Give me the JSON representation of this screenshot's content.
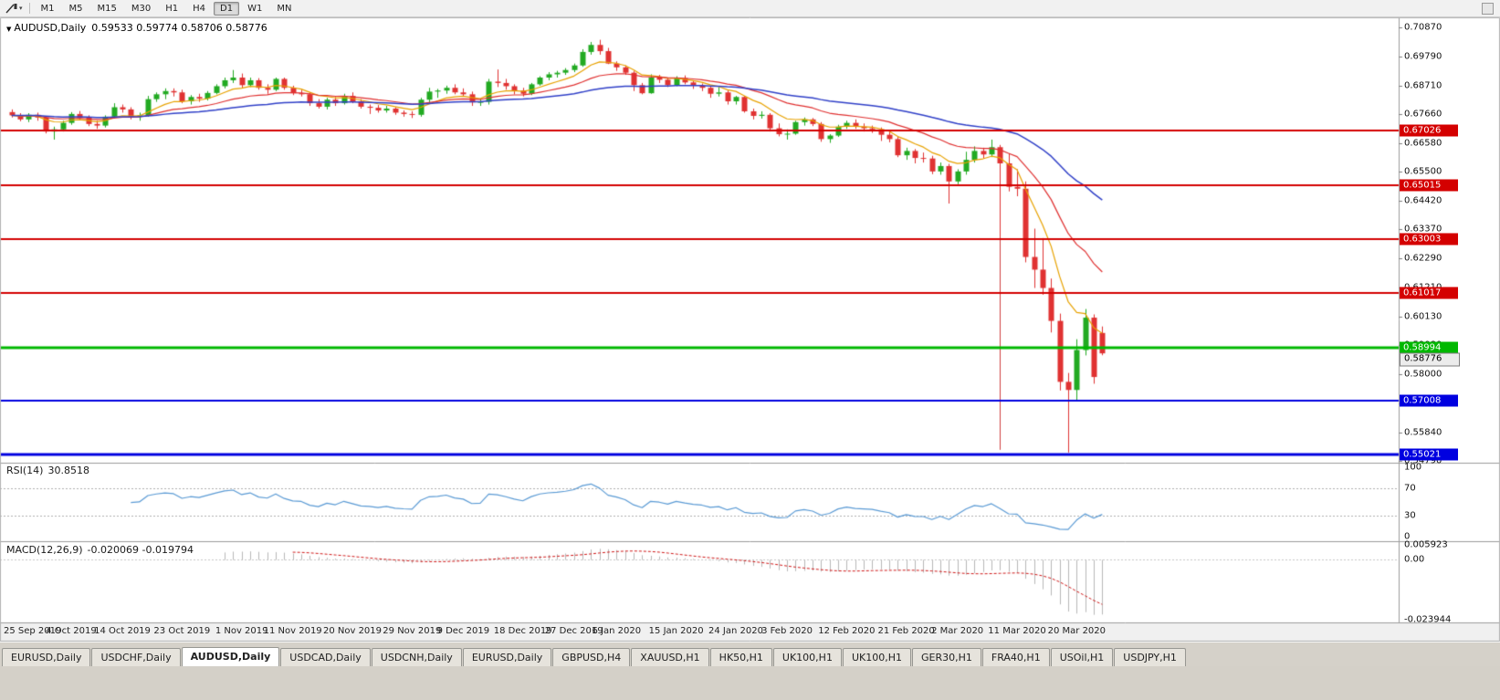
{
  "toolbar": {
    "timeframes": [
      "M1",
      "M5",
      "M15",
      "M30",
      "H1",
      "H4",
      "D1",
      "W1",
      "MN"
    ],
    "active_timeframe": "D1"
  },
  "chart": {
    "symbol_title": "AUDUSD,Daily",
    "ohlc_text": "0.59533 0.59774 0.58706 0.58776",
    "open": "0.59533",
    "high": "0.59774",
    "low": "0.58706",
    "close": "0.58776"
  },
  "rsi": {
    "name": "RSI(14)",
    "value": "30.8518",
    "axis_labels": [
      "100",
      "70",
      "30",
      "0"
    ]
  },
  "macd": {
    "name": "MACD(12,26,9)",
    "value_text": "-0.020069 -0.019794",
    "axis_labels": [
      "0.005923",
      "0.00",
      "-0.023944"
    ]
  },
  "tabs": {
    "items": [
      "EURUSD,Daily",
      "USDCHF,Daily",
      "AUDUSD,Daily",
      "USDCAD,Daily",
      "USDCNH,Daily",
      "EURUSD,Daily",
      "GBPUSD,H4",
      "XAUUSD,H1",
      "HK50,H1",
      "UK100,H1",
      "UK100,H1",
      "GER30,H1",
      "FRA40,H1",
      "USOil,H1",
      "USDJPY,H1"
    ],
    "active_index": 2
  },
  "chart_data": {
    "type": "candlestick",
    "symbol": "AUDUSD",
    "timeframe": "Daily",
    "title": "AUDUSD,Daily",
    "y_range": [
      0.5479,
      0.7103
    ],
    "price_axis_ticks": [
      "0.70870",
      "0.69790",
      "0.68710",
      "0.67660",
      "0.66580",
      "0.65500",
      "0.64420",
      "0.63370",
      "0.62290",
      "0.61210",
      "0.60130",
      "0.59080",
      "0.58000",
      "0.56920",
      "0.55840",
      "0.54790"
    ],
    "x_labels": [
      {
        "i": 0,
        "t": "25 Sep 2019"
      },
      {
        "i": 7,
        "t": "4 Oct 2019"
      },
      {
        "i": 13,
        "t": "14 Oct 2019"
      },
      {
        "i": 20,
        "t": "23 Oct 2019"
      },
      {
        "i": 27,
        "t": "1 Nov 2019"
      },
      {
        "i": 33,
        "t": "11 Nov 2019"
      },
      {
        "i": 40,
        "t": "20 Nov 2019"
      },
      {
        "i": 47,
        "t": "29 Nov 2019"
      },
      {
        "i": 53,
        "t": "9 Dec 2019"
      },
      {
        "i": 60,
        "t": "18 Dec 2019"
      },
      {
        "i": 66,
        "t": "27 Dec 2019"
      },
      {
        "i": 71,
        "t": "6 Jan 2020"
      },
      {
        "i": 78,
        "t": "15 Jan 2020"
      },
      {
        "i": 85,
        "t": "24 Jan 2020"
      },
      {
        "i": 91,
        "t": "3 Feb 2020"
      },
      {
        "i": 98,
        "t": "12 Feb 2020"
      },
      {
        "i": 105,
        "t": "21 Feb 2020"
      },
      {
        "i": 111,
        "t": "2 Mar 2020"
      },
      {
        "i": 118,
        "t": "11 Mar 2020"
      },
      {
        "i": 125,
        "t": "20 Mar 2020"
      }
    ],
    "candles": [
      [
        0.6772,
        0.6782,
        0.6752,
        0.676
      ],
      [
        0.676,
        0.6768,
        0.6738,
        0.6745
      ],
      [
        0.6745,
        0.6768,
        0.6735,
        0.6762
      ],
      [
        0.6762,
        0.677,
        0.674,
        0.6752
      ],
      [
        0.6752,
        0.6758,
        0.6693,
        0.67
      ],
      [
        0.67,
        0.6718,
        0.667,
        0.6708
      ],
      [
        0.6708,
        0.674,
        0.67,
        0.6732
      ],
      [
        0.6732,
        0.6772,
        0.6725,
        0.6765
      ],
      [
        0.6765,
        0.6776,
        0.6745,
        0.6752
      ],
      [
        0.6752,
        0.676,
        0.672,
        0.6728
      ],
      [
        0.6728,
        0.674,
        0.671,
        0.6722
      ],
      [
        0.6722,
        0.676,
        0.6715,
        0.6755
      ],
      [
        0.6755,
        0.6805,
        0.675,
        0.679
      ],
      [
        0.679,
        0.68,
        0.677,
        0.6782
      ],
      [
        0.6782,
        0.679,
        0.6745,
        0.6755
      ],
      [
        0.6755,
        0.677,
        0.674,
        0.676
      ],
      [
        0.676,
        0.6832,
        0.6755,
        0.682
      ],
      [
        0.682,
        0.6845,
        0.681,
        0.6838
      ],
      [
        0.6838,
        0.686,
        0.682,
        0.685
      ],
      [
        0.685,
        0.686,
        0.683,
        0.6845
      ],
      [
        0.6845,
        0.6855,
        0.6805,
        0.6812
      ],
      [
        0.6812,
        0.6835,
        0.68,
        0.6828
      ],
      [
        0.6828,
        0.684,
        0.681,
        0.6822
      ],
      [
        0.6822,
        0.685,
        0.6815,
        0.6843
      ],
      [
        0.6843,
        0.6875,
        0.6838,
        0.6868
      ],
      [
        0.6868,
        0.69,
        0.686,
        0.689
      ],
      [
        0.689,
        0.6928,
        0.688,
        0.69
      ],
      [
        0.69,
        0.6915,
        0.6862,
        0.6872
      ],
      [
        0.6872,
        0.69,
        0.6865,
        0.689
      ],
      [
        0.689,
        0.6898,
        0.6855,
        0.6862
      ],
      [
        0.6862,
        0.6875,
        0.684,
        0.6855
      ],
      [
        0.6855,
        0.69,
        0.685,
        0.6895
      ],
      [
        0.6895,
        0.69,
        0.6855,
        0.6862
      ],
      [
        0.6862,
        0.687,
        0.6835,
        0.6842
      ],
      [
        0.6842,
        0.6855,
        0.683,
        0.6838
      ],
      [
        0.6838,
        0.6845,
        0.6795,
        0.6805
      ],
      [
        0.6805,
        0.682,
        0.6785,
        0.6792
      ],
      [
        0.6792,
        0.6825,
        0.6782,
        0.6818
      ],
      [
        0.6818,
        0.6828,
        0.6795,
        0.6805
      ],
      [
        0.6805,
        0.684,
        0.68,
        0.6832
      ],
      [
        0.6832,
        0.6845,
        0.6805,
        0.6812
      ],
      [
        0.6812,
        0.682,
        0.6785,
        0.6792
      ],
      [
        0.6792,
        0.68,
        0.6765,
        0.6788
      ],
      [
        0.6788,
        0.6798,
        0.677,
        0.6778
      ],
      [
        0.6778,
        0.6795,
        0.677,
        0.6785
      ],
      [
        0.6785,
        0.679,
        0.6762,
        0.677
      ],
      [
        0.677,
        0.6778,
        0.6755,
        0.6765
      ],
      [
        0.6765,
        0.6775,
        0.675,
        0.6762
      ],
      [
        0.6762,
        0.6825,
        0.6755,
        0.6818
      ],
      [
        0.6818,
        0.6862,
        0.6805,
        0.6848
      ],
      [
        0.6848,
        0.6858,
        0.6825,
        0.6852
      ],
      [
        0.6852,
        0.687,
        0.684,
        0.6862
      ],
      [
        0.6862,
        0.6875,
        0.6838,
        0.6845
      ],
      [
        0.6845,
        0.686,
        0.683,
        0.6838
      ],
      [
        0.6838,
        0.6848,
        0.6795,
        0.6808
      ],
      [
        0.6808,
        0.682,
        0.6795,
        0.681
      ],
      [
        0.681,
        0.6895,
        0.68,
        0.6885
      ],
      [
        0.6885,
        0.693,
        0.6865,
        0.688
      ],
      [
        0.688,
        0.6895,
        0.6855,
        0.6868
      ],
      [
        0.6868,
        0.6875,
        0.6838,
        0.6852
      ],
      [
        0.6852,
        0.6862,
        0.683,
        0.684
      ],
      [
        0.684,
        0.688,
        0.6835,
        0.6875
      ],
      [
        0.6875,
        0.6905,
        0.687,
        0.69
      ],
      [
        0.69,
        0.692,
        0.689,
        0.6912
      ],
      [
        0.6912,
        0.6925,
        0.69,
        0.6918
      ],
      [
        0.6918,
        0.6935,
        0.691,
        0.6928
      ],
      [
        0.6928,
        0.6952,
        0.692,
        0.6945
      ],
      [
        0.6945,
        0.7005,
        0.694,
        0.6995
      ],
      [
        0.6995,
        0.7032,
        0.6985,
        0.7021
      ],
      [
        0.7021,
        0.704,
        0.6985,
        0.6998
      ],
      [
        0.6998,
        0.701,
        0.695,
        0.6952
      ],
      [
        0.6952,
        0.696,
        0.6925,
        0.6938
      ],
      [
        0.6938,
        0.6945,
        0.691,
        0.6918
      ],
      [
        0.6918,
        0.6925,
        0.685,
        0.6872
      ],
      [
        0.6872,
        0.688,
        0.6838,
        0.6842
      ],
      [
        0.6842,
        0.6912,
        0.684,
        0.69
      ],
      [
        0.69,
        0.691,
        0.688,
        0.6892
      ],
      [
        0.6892,
        0.69,
        0.6865,
        0.6872
      ],
      [
        0.6872,
        0.6905,
        0.6868,
        0.6898
      ],
      [
        0.6898,
        0.6908,
        0.6875,
        0.6882
      ],
      [
        0.6882,
        0.689,
        0.6858,
        0.687
      ],
      [
        0.687,
        0.6878,
        0.685,
        0.6862
      ],
      [
        0.6862,
        0.687,
        0.6825,
        0.684
      ],
      [
        0.684,
        0.6865,
        0.683,
        0.6845
      ],
      [
        0.6845,
        0.6852,
        0.68,
        0.6812
      ],
      [
        0.6812,
        0.6832,
        0.68,
        0.6828
      ],
      [
        0.6828,
        0.6832,
        0.677,
        0.6775
      ],
      [
        0.6775,
        0.6785,
        0.6745,
        0.6758
      ],
      [
        0.6758,
        0.6775,
        0.6748,
        0.6762
      ],
      [
        0.6762,
        0.6768,
        0.67,
        0.6712
      ],
      [
        0.6712,
        0.673,
        0.6682,
        0.669
      ],
      [
        0.669,
        0.6708,
        0.667,
        0.6692
      ],
      [
        0.6692,
        0.674,
        0.6688,
        0.6735
      ],
      [
        0.6735,
        0.6752,
        0.6722,
        0.6745
      ],
      [
        0.6745,
        0.675,
        0.672,
        0.6728
      ],
      [
        0.6728,
        0.6735,
        0.6662,
        0.6672
      ],
      [
        0.6672,
        0.669,
        0.6658,
        0.6685
      ],
      [
        0.6685,
        0.6725,
        0.668,
        0.6718
      ],
      [
        0.6718,
        0.674,
        0.671,
        0.6732
      ],
      [
        0.6732,
        0.6745,
        0.671,
        0.6718
      ],
      [
        0.6718,
        0.673,
        0.67,
        0.6712
      ],
      [
        0.6712,
        0.6722,
        0.6695,
        0.6708
      ],
      [
        0.6708,
        0.6715,
        0.6665,
        0.6688
      ],
      [
        0.6688,
        0.67,
        0.666,
        0.6672
      ],
      [
        0.6672,
        0.668,
        0.6605,
        0.6612
      ],
      [
        0.6612,
        0.664,
        0.6595,
        0.6628
      ],
      [
        0.6628,
        0.6635,
        0.6582,
        0.6602
      ],
      [
        0.6602,
        0.6622,
        0.6585,
        0.66
      ],
      [
        0.66,
        0.661,
        0.6542,
        0.6552
      ],
      [
        0.6552,
        0.6585,
        0.654,
        0.6572
      ],
      [
        0.6572,
        0.658,
        0.6433,
        0.6515
      ],
      [
        0.6515,
        0.656,
        0.6505,
        0.6552
      ],
      [
        0.6552,
        0.6625,
        0.654,
        0.6595
      ],
      [
        0.6595,
        0.6645,
        0.6585,
        0.6628
      ],
      [
        0.6628,
        0.664,
        0.66,
        0.6615
      ],
      [
        0.6615,
        0.667,
        0.6605,
        0.6642
      ],
      [
        0.6642,
        0.665,
        0.6313,
        0.6582
      ],
      [
        0.6582,
        0.6618,
        0.6478,
        0.6495
      ],
      [
        0.6495,
        0.656,
        0.646,
        0.6488
      ],
      [
        0.6488,
        0.6515,
        0.6215,
        0.6235
      ],
      [
        0.6235,
        0.634,
        0.612,
        0.6188
      ],
      [
        0.6188,
        0.6305,
        0.6095,
        0.612
      ],
      [
        0.612,
        0.6155,
        0.5955,
        0.5998
      ],
      [
        0.5998,
        0.6025,
        0.574,
        0.5772
      ],
      [
        0.5772,
        0.5805,
        0.551,
        0.5742
      ],
      [
        0.5742,
        0.593,
        0.57,
        0.589
      ],
      [
        0.589,
        0.6042,
        0.587,
        0.601
      ],
      [
        0.601,
        0.6022,
        0.5765,
        0.579
      ],
      [
        0.59533,
        0.59774,
        0.58706,
        0.58776
      ]
    ],
    "moving_averages": [
      {
        "type": "EMA",
        "period": 8,
        "color": "#e8a200",
        "width": 1.2
      },
      {
        "type": "EMA",
        "period": 20,
        "color": "#e03030",
        "width": 1.2
      },
      {
        "type": "EMA",
        "period": 50,
        "color": "#3040c8",
        "width": 1.5
      }
    ],
    "hlines": [
      {
        "value": 0.67026,
        "label": "0.67026",
        "color": "#d40000",
        "width": 2
      },
      {
        "value": 0.65015,
        "label": "0.65015",
        "color": "#d40000",
        "width": 2
      },
      {
        "value": 0.63003,
        "label": "0.63003",
        "color": "#d40000",
        "width": 2
      },
      {
        "value": 0.61017,
        "label": "0.61017",
        "color": "#d40000",
        "width": 2
      },
      {
        "value": 0.58994,
        "label": "0.58994",
        "color": "#00b800",
        "width": 3
      },
      {
        "value": 0.57008,
        "label": "0.57008",
        "color": "#0000e0",
        "width": 2
      },
      {
        "value": 0.55021,
        "label": "0.55021",
        "color": "#0000e0",
        "width": 3
      }
    ],
    "vline": {
      "i": 116,
      "from": 0.665,
      "to": 0.552,
      "color": "#d04040"
    },
    "current_price": {
      "value": 0.58776,
      "label": "0.58776"
    },
    "rsi": {
      "period": 14,
      "color": "#5b9bd5",
      "levels": [
        70,
        30
      ],
      "range": [
        0,
        100
      ]
    },
    "macd": {
      "fast": 12,
      "slow": 26,
      "signal": 9,
      "histogram_color": "#b8b8b8",
      "signal_color": "#d01818",
      "range": [
        -0.023944,
        0.005923
      ]
    },
    "candle_up_color": "#22aa22",
    "candle_down_color": "#e03232"
  }
}
